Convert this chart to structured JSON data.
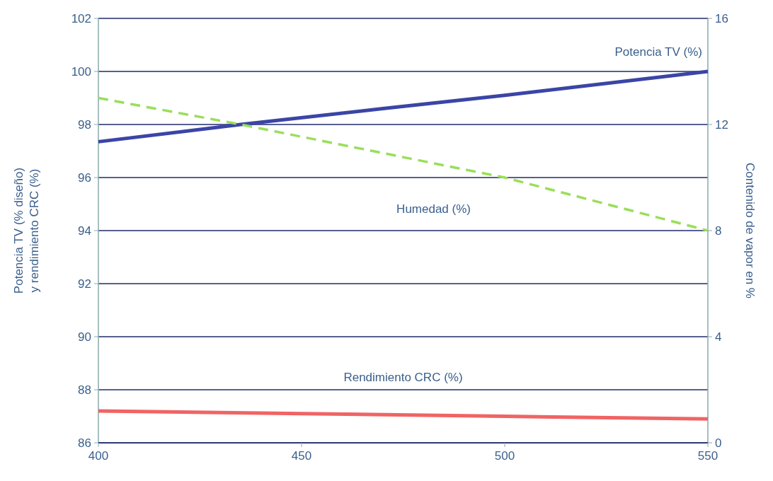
{
  "chart_data": {
    "type": "line",
    "x": [
      400,
      435,
      470,
      500,
      550
    ],
    "xlim": [
      400,
      550
    ],
    "xticks": [
      400,
      450,
      500,
      550
    ],
    "ylim": [
      86,
      102
    ],
    "yticks": [
      86,
      88,
      90,
      92,
      94,
      96,
      98,
      100,
      102
    ],
    "y2lim": [
      0,
      16
    ],
    "y2ticks": [
      0,
      4,
      8,
      12,
      16
    ],
    "ylabel": "Potencia TV (% diseño)\ny rendimiento CRC (%)",
    "y2label": "Contenido de vapor en %",
    "grid": "y",
    "series": [
      {
        "name": "Potencia TV (%)",
        "color": "#3b45a6",
        "values": [
          97.35,
          98,
          98.6,
          99.1,
          100
        ]
      },
      {
        "name": "Humedad (%)",
        "color": "#9ade5a",
        "axis": "y2",
        "line_style": "dashed",
        "x": [
          400,
          435,
          500,
          550
        ],
        "values": [
          13,
          12,
          10,
          8
        ]
      },
      {
        "name": "Rendimiento CRC (%)",
        "color": "#f06464",
        "x": [
          400,
          450,
          500,
          550
        ],
        "values": [
          87.2,
          87.1,
          87,
          86.9
        ]
      }
    ]
  }
}
